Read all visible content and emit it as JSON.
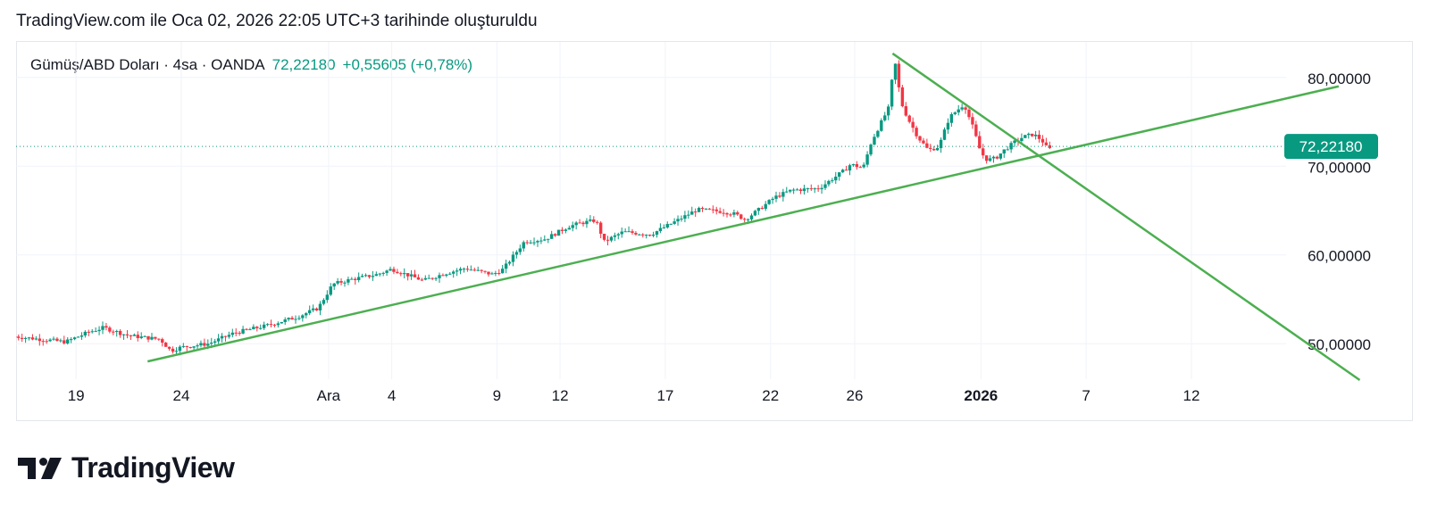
{
  "caption": "TradingView.com ile Oca 02, 2026 22:05 UTC+3 tarihinde oluşturuldu",
  "legend": {
    "symbol": "Gümüş/ABD Doları · 4sa · OANDA",
    "last": "72,22180",
    "change": "+0,55605 (+0,78%)"
  },
  "branding": {
    "logo_text": "TradingView",
    "logo_icon": "tradingview-logo-icon"
  },
  "colors": {
    "up": "#089981",
    "down": "#f23645",
    "trendline": "#4caf50",
    "price_line": "#089981",
    "grid": "#f0f3fa",
    "text": "#131722"
  },
  "chart_data": {
    "type": "candlestick",
    "y_ticks": [
      {
        "value": 80,
        "label": "80,00000"
      },
      {
        "value": 70,
        "label": "70,00000"
      },
      {
        "value": 60,
        "label": "60,00000"
      },
      {
        "value": 50,
        "label": "50,00000"
      }
    ],
    "x_ticks": [
      {
        "t": 0.0,
        "label": "19",
        "bold": false
      },
      {
        "t": 5.0,
        "label": "24",
        "bold": false
      },
      {
        "t": 12.0,
        "label": "Ara",
        "bold": false
      },
      {
        "t": 15.0,
        "label": "4",
        "bold": false
      },
      {
        "t": 20.0,
        "label": "9",
        "bold": false
      },
      {
        "t": 23.0,
        "label": "12",
        "bold": false
      },
      {
        "t": 28.0,
        "label": "17",
        "bold": false
      },
      {
        "t": 33.0,
        "label": "22",
        "bold": false
      },
      {
        "t": 37.0,
        "label": "26",
        "bold": false
      },
      {
        "t": 43.0,
        "label": "2026",
        "bold": true
      },
      {
        "t": 48.0,
        "label": "7",
        "bold": false
      },
      {
        "t": 53.0,
        "label": "12",
        "bold": false
      }
    ],
    "ylim": [
      46,
      84
    ],
    "xlim": [
      -2.85,
      57.5
    ],
    "last_price": 72.2218,
    "last_price_label": "72,22180",
    "trendlines": [
      {
        "name": "support",
        "from": {
          "t": 3.4,
          "v": 48.0
        },
        "to": {
          "t": 60.0,
          "v": 79.0
        }
      },
      {
        "name": "resistance",
        "from": {
          "t": 38.8,
          "v": 82.7
        },
        "to": {
          "t": 61.0,
          "v": 45.9
        }
      }
    ],
    "anchors": [
      [
        -2.9,
        50.8
      ],
      [
        -0.5,
        50.2
      ],
      [
        0.6,
        51.3
      ],
      [
        1.3,
        51.8
      ],
      [
        2.5,
        50.9
      ],
      [
        4.0,
        50.5
      ],
      [
        4.5,
        49.2
      ],
      [
        5.0,
        49.6
      ],
      [
        6.3,
        50.0
      ],
      [
        7.5,
        51.2
      ],
      [
        9.0,
        52.0
      ],
      [
        10.5,
        53.0
      ],
      [
        11.5,
        54.0
      ],
      [
        12.2,
        56.7
      ],
      [
        13.0,
        57.2
      ],
      [
        14.3,
        57.8
      ],
      [
        15.0,
        58.4
      ],
      [
        16.5,
        57.1
      ],
      [
        17.5,
        57.9
      ],
      [
        18.5,
        58.5
      ],
      [
        19.8,
        57.8
      ],
      [
        20.3,
        58.4
      ],
      [
        21.3,
        61.5
      ],
      [
        22.3,
        61.8
      ],
      [
        23.4,
        63.2
      ],
      [
        24.0,
        63.6
      ],
      [
        24.7,
        63.9
      ],
      [
        25.1,
        61.5
      ],
      [
        26.0,
        62.6
      ],
      [
        27.3,
        62.3
      ],
      [
        28.5,
        63.8
      ],
      [
        29.5,
        65.1
      ],
      [
        30.7,
        64.9
      ],
      [
        31.3,
        64.6
      ],
      [
        31.8,
        64.0
      ],
      [
        32.5,
        65.2
      ],
      [
        33.2,
        66.5
      ],
      [
        34.0,
        67.3
      ],
      [
        35.3,
        67.5
      ],
      [
        36.5,
        69.5
      ],
      [
        36.8,
        70.2
      ],
      [
        37.4,
        69.8
      ],
      [
        37.8,
        72.8
      ],
      [
        38.6,
        76.5
      ],
      [
        38.9,
        82.0
      ],
      [
        39.2,
        77.2
      ],
      [
        39.5,
        75.5
      ],
      [
        40.0,
        73.3
      ],
      [
        40.5,
        71.8
      ],
      [
        41.0,
        72.2
      ],
      [
        41.5,
        75.5
      ],
      [
        42.2,
        77.0
      ],
      [
        42.6,
        74.5
      ],
      [
        43.0,
        71.5
      ],
      [
        43.3,
        70.7
      ],
      [
        43.7,
        70.9
      ],
      [
        44.1,
        71.8
      ],
      [
        44.6,
        72.7
      ],
      [
        45.0,
        73.3
      ],
      [
        45.5,
        73.6
      ],
      [
        45.9,
        72.9
      ],
      [
        46.2,
        71.8
      ],
      [
        46.4,
        72.2
      ]
    ]
  }
}
